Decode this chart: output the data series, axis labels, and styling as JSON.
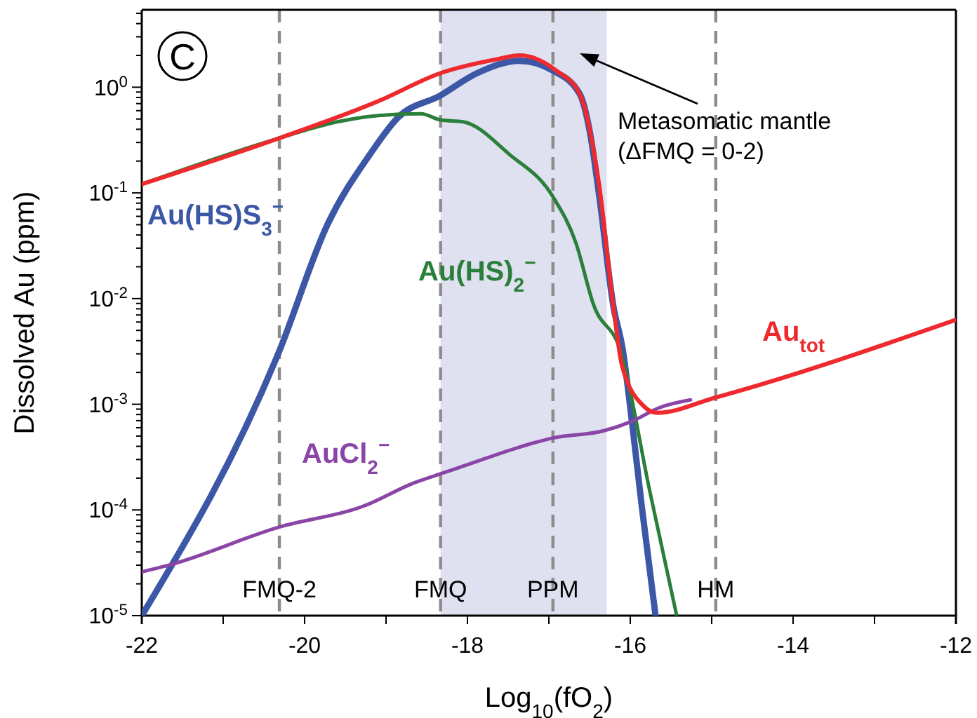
{
  "chart_data": {
    "type": "line",
    "xlabel": "Log$_{10}$(fO$_{2}$)",
    "ylabel": "Dissolved Au (ppm)",
    "log": "y",
    "line_style": "solid",
    "marker": "none",
    "xlim": [
      -22,
      -12
    ],
    "ylim": [
      1e-05,
      5.4
    ],
    "xticks": [
      -22,
      {
        "value": -21,
        "label": null
      },
      -20,
      {
        "value": -19,
        "label": null
      },
      -18,
      {
        "value": -17,
        "label": null
      },
      -16,
      {
        "value": -15,
        "label": null
      },
      -14,
      {
        "value": -13,
        "label": null
      },
      -12
    ],
    "yticks": [
      {
        "value": 1e-05,
        "label": "10$^{-5}$"
      },
      {
        "value": 2e-05,
        "label": null
      },
      {
        "value": 3e-05,
        "label": null
      },
      {
        "value": 4e-05,
        "label": null
      },
      {
        "value": 5e-05,
        "label": null
      },
      {
        "value": 6e-05,
        "label": null
      },
      {
        "value": 7e-05,
        "label": null
      },
      {
        "value": 8e-05,
        "label": null
      },
      {
        "value": 9e-05,
        "label": null
      },
      {
        "value": 0.0001,
        "label": "10$^{-4}$"
      },
      {
        "value": 0.0002,
        "label": null
      },
      {
        "value": 0.0003,
        "label": null
      },
      {
        "value": 0.0004,
        "label": null
      },
      {
        "value": 0.0005,
        "label": null
      },
      {
        "value": 0.0006,
        "label": null
      },
      {
        "value": 0.0007,
        "label": null
      },
      {
        "value": 0.0008,
        "label": null
      },
      {
        "value": 0.0009,
        "label": null
      },
      {
        "value": 0.001,
        "label": "10$^{-3}$"
      },
      {
        "value": 0.002,
        "label": null
      },
      {
        "value": 0.003,
        "label": null
      },
      {
        "value": 0.004,
        "label": null
      },
      {
        "value": 0.005,
        "label": null
      },
      {
        "value": 0.006,
        "label": null
      },
      {
        "value": 0.007,
        "label": null
      },
      {
        "value": 0.008,
        "label": null
      },
      {
        "value": 0.009,
        "label": null
      },
      {
        "value": 0.01,
        "label": "10$^{-2}$"
      },
      {
        "value": 0.02,
        "label": null
      },
      {
        "value": 0.03,
        "label": null
      },
      {
        "value": 0.04,
        "label": null
      },
      {
        "value": 0.05,
        "label": null
      },
      {
        "value": 0.06,
        "label": null
      },
      {
        "value": 0.07,
        "label": null
      },
      {
        "value": 0.08,
        "label": null
      },
      {
        "value": 0.09,
        "label": null
      },
      {
        "value": 0.1,
        "label": "10$^{-1}$"
      },
      {
        "value": 0.2,
        "label": null
      },
      {
        "value": 0.3,
        "label": null
      },
      {
        "value": 0.4,
        "label": null
      },
      {
        "value": 0.5,
        "label": null
      },
      {
        "value": 0.6,
        "label": null
      },
      {
        "value": 0.7,
        "label": null
      },
      {
        "value": 0.8,
        "label": null
      },
      {
        "value": 0.9,
        "label": null
      },
      {
        "value": 1,
        "label": "10$^{0}$"
      },
      {
        "value": 2,
        "label": null
      },
      {
        "value": 3,
        "label": null
      },
      {
        "value": 4,
        "label": null
      },
      {
        "value": 5,
        "label": null
      }
    ],
    "series": [
      {
        "name": "Au(HS)S$_{3}$$^{−}$",
        "color": "#3b57a6",
        "x": [
          -22,
          -20.31,
          -19.72,
          -19.2,
          -18.85,
          -18.34,
          -17.88,
          -17.36,
          -16.95,
          -16.62,
          -16.5,
          -16.38,
          -16.21,
          -16.09,
          -15.98,
          -15.86,
          -15.69
        ],
        "values": [
          1e-05,
          0.0032,
          0.05,
          0.23,
          0.52,
          0.83,
          1.36,
          1.78,
          1.44,
          0.86,
          0.39,
          0.092,
          0.0087,
          0.0032,
          0.00069,
          0.00011,
          1e-05
        ]
      },
      {
        "name": "Au(HS)$_{2}$$^{−}$",
        "color": "#2a7f3a",
        "x": [
          -22,
          -20.31,
          -19.6,
          -19.09,
          -18.57,
          -18.33,
          -18.05,
          -17.48,
          -16.95,
          -16.67,
          -16.45,
          -16.12,
          -15.76,
          -15.43
        ],
        "values": [
          0.121,
          0.33,
          0.47,
          0.54,
          0.56,
          0.49,
          0.47,
          0.23,
          0.092,
          0.034,
          0.0087,
          0.0032,
          0.00015,
          1e-05
        ]
      },
      {
        "name": "AuCl$_{2}$$^{−}$",
        "color": "#8a45a6",
        "x": [
          -22,
          -21.67,
          -20.31,
          -19.26,
          -18.66,
          -18.33,
          -18.05,
          -17.33,
          -16.95,
          -16.33,
          -15.98,
          -15.64,
          -15.26
        ],
        "values": [
          2.6e-05,
          3e-05,
          6.9e-05,
          0.00011,
          0.00018,
          0.00022,
          0.00026,
          0.0004,
          0.00048,
          0.00056,
          0.00069,
          0.00093,
          0.0011
        ]
      },
      {
        "name": "Au$_{tot}$",
        "color": "#ee2a2e",
        "x": [
          -22,
          -20.31,
          -19.09,
          -18.33,
          -17.62,
          -17.36,
          -16.91,
          -16.62,
          -16.38,
          -16.21,
          -16.1,
          -15.84,
          -15.67,
          -14.95,
          -12
        ],
        "values": [
          0.121,
          0.33,
          0.74,
          1.36,
          1.85,
          2.0,
          1.44,
          0.86,
          0.114,
          0.0087,
          0.0023,
          0.00097,
          0.00083,
          0.00116,
          0.0063
        ]
      }
    ],
    "ref_lines": [
      {
        "axis": "x",
        "value": -20.31,
        "label": "FMQ-2",
        "color": "#8c8c8c",
        "line_style": "dashed"
      },
      {
        "axis": "x",
        "value": -18.33,
        "label": "FMQ",
        "color": "#8c8c8c",
        "line_style": "dashed"
      },
      {
        "axis": "x",
        "value": -16.95,
        "label": "PPM",
        "color": "#8c8c8c",
        "line_style": "dashed"
      },
      {
        "axis": "x",
        "value": -14.95,
        "label": "HM",
        "color": "#8c8c8c",
        "line_style": "dashed"
      }
    ],
    "bands": [
      {
        "axis": "x",
        "from": -18.33,
        "to": -16.29,
        "label": "Metasomatic mantle\n(ΔFMQ = 0-2)",
        "color": "#dfe0f0"
      }
    ],
    "annotations": [
      "C"
    ]
  }
}
